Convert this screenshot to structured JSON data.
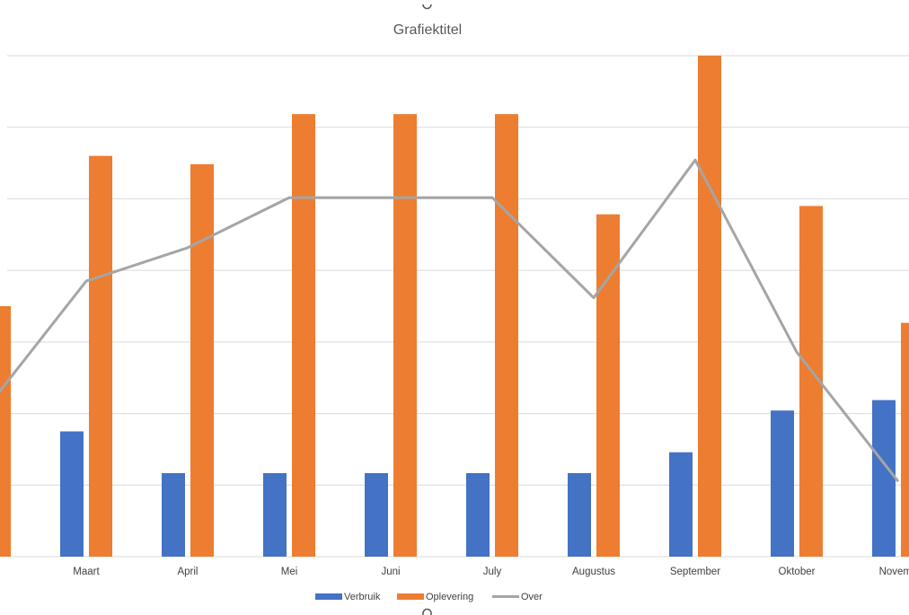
{
  "chart_data": {
    "type": "bar",
    "title": "Grafiektitel",
    "xlabel": "",
    "ylabel": "",
    "ylim": [
      0,
      1200
    ],
    "grid": true,
    "legend_position": "bottom",
    "categories": [
      "",
      "Maart",
      "April",
      "Mei",
      "Juni",
      "July",
      "Augustus",
      "September",
      "Oktober",
      "Novemb"
    ],
    "series": [
      {
        "name": "Verbruik",
        "kind": "bar",
        "color": "#4472C4",
        "values": [
          null,
          300,
          200,
          200,
          200,
          200,
          200,
          250,
          350,
          375
        ]
      },
      {
        "name": "Oplevering",
        "kind": "bar",
        "color": "#ED7D31",
        "values": [
          600,
          960,
          940,
          1060,
          1060,
          1060,
          820,
          1200,
          840,
          560
        ]
      },
      {
        "name": "Over",
        "kind": "line",
        "color": "#A5A5A5",
        "values": [
          350,
          660,
          740,
          860,
          860,
          860,
          620,
          950,
          490,
          180
        ]
      }
    ]
  }
}
